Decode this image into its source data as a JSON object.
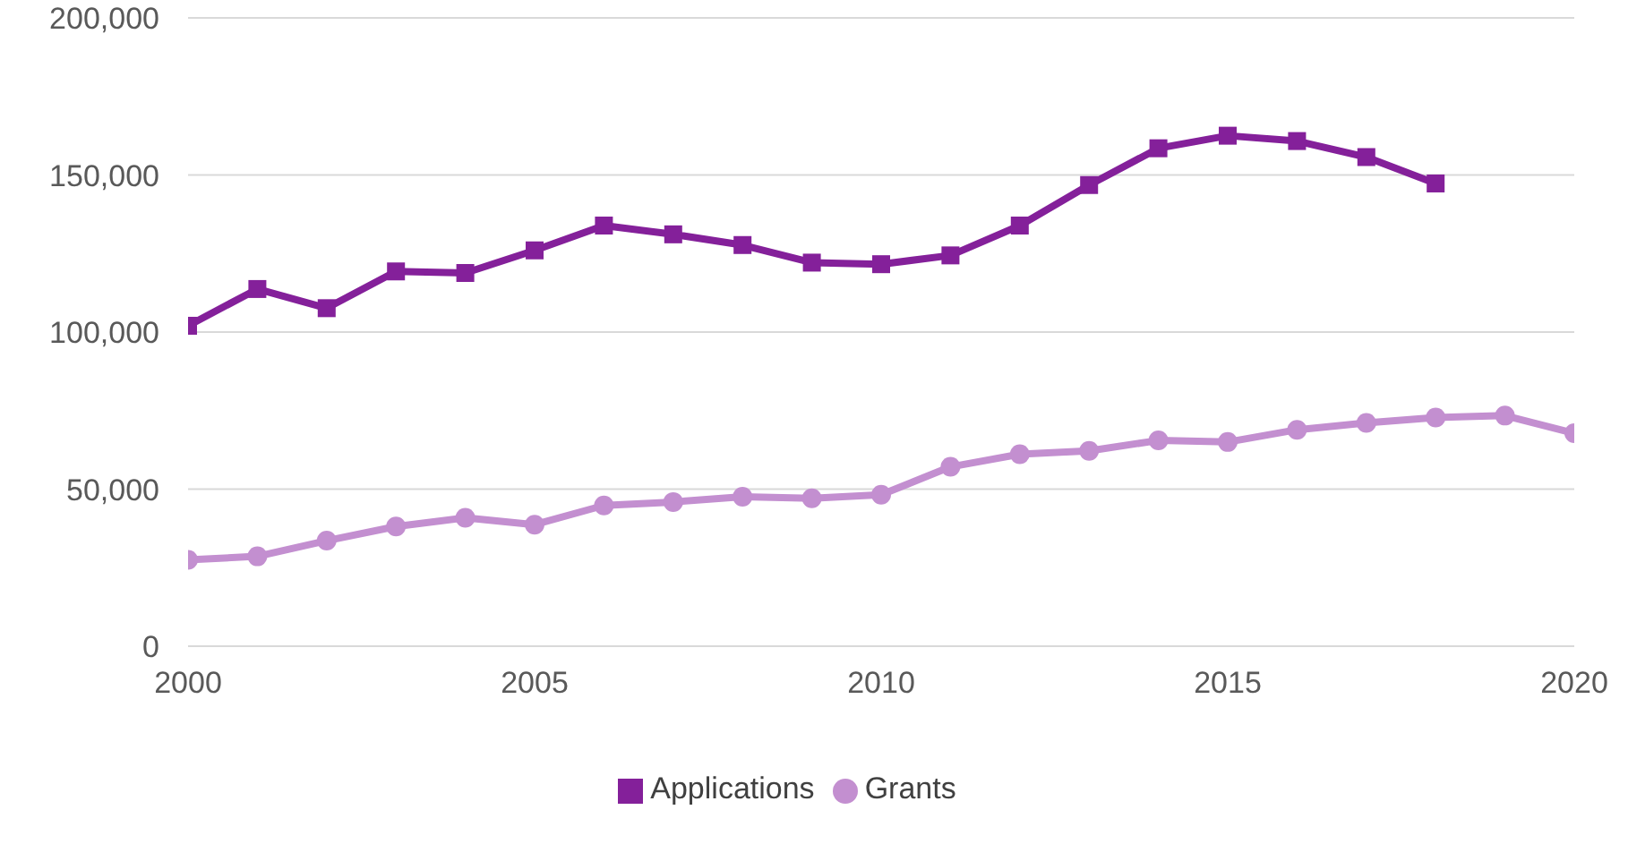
{
  "chart_data": {
    "type": "line",
    "x": [
      2000,
      2001,
      2002,
      2003,
      2004,
      2005,
      2006,
      2007,
      2008,
      2009,
      2010,
      2011,
      2012,
      2013,
      2014,
      2015,
      2016,
      2017,
      2018,
      2019,
      2020
    ],
    "series": [
      {
        "name": "Applications",
        "color": "#84209a",
        "marker": "square",
        "values": [
          102000,
          113700,
          107600,
          119300,
          118800,
          126000,
          133900,
          131100,
          127700,
          122100,
          121600,
          124400,
          133900,
          146800,
          158500,
          162500,
          160800,
          155700,
          147300,
          null,
          null
        ]
      },
      {
        "name": "Grants",
        "color": "#c38fd0",
        "marker": "circle",
        "values": [
          27500,
          28600,
          33600,
          38100,
          40900,
          38700,
          44800,
          45900,
          47600,
          47100,
          48200,
          57100,
          61100,
          62200,
          65500,
          65000,
          68900,
          71100,
          72800,
          73400,
          67800
        ]
      }
    ],
    "xlim": [
      2000,
      2020
    ],
    "xticks": [
      2000,
      2005,
      2010,
      2015,
      2020
    ],
    "ylim": [
      0,
      200000
    ],
    "yticks": [
      0,
      {
        "value": 50000,
        "label": "50,000"
      },
      {
        "value": 100000,
        "label": "100,000"
      },
      {
        "value": 150000,
        "label": "150,000"
      },
      {
        "value": 200000,
        "label": "200,000"
      }
    ],
    "grid": "y",
    "legend": "bottom",
    "line_style": "solid"
  }
}
